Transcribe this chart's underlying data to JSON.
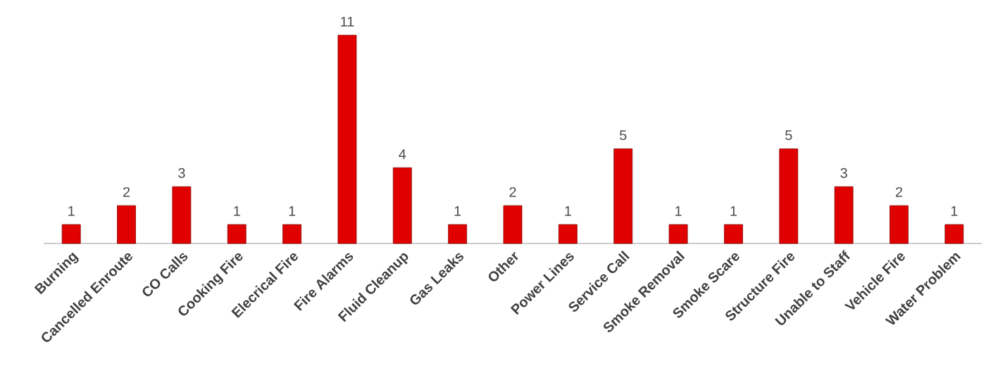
{
  "chart_data": {
    "type": "bar",
    "categories": [
      "Burning",
      "Cancelled Enroute",
      "CO Calls",
      "Cooking Fire",
      "Elecrical Fire",
      "Fire Alarms",
      "Fluid Cleanup",
      "Gas Leaks",
      "Other",
      "Power Lines",
      "Service Call",
      "Smoke Removal",
      "Smoke Scare",
      "Structure Fire",
      "Unable to Staff",
      "Vehicle Fire",
      "Water Problem"
    ],
    "values": [
      1,
      2,
      3,
      1,
      1,
      11,
      4,
      1,
      2,
      1,
      5,
      1,
      1,
      5,
      3,
      2,
      1
    ],
    "color": "#e00000",
    "data_labels": true
  }
}
